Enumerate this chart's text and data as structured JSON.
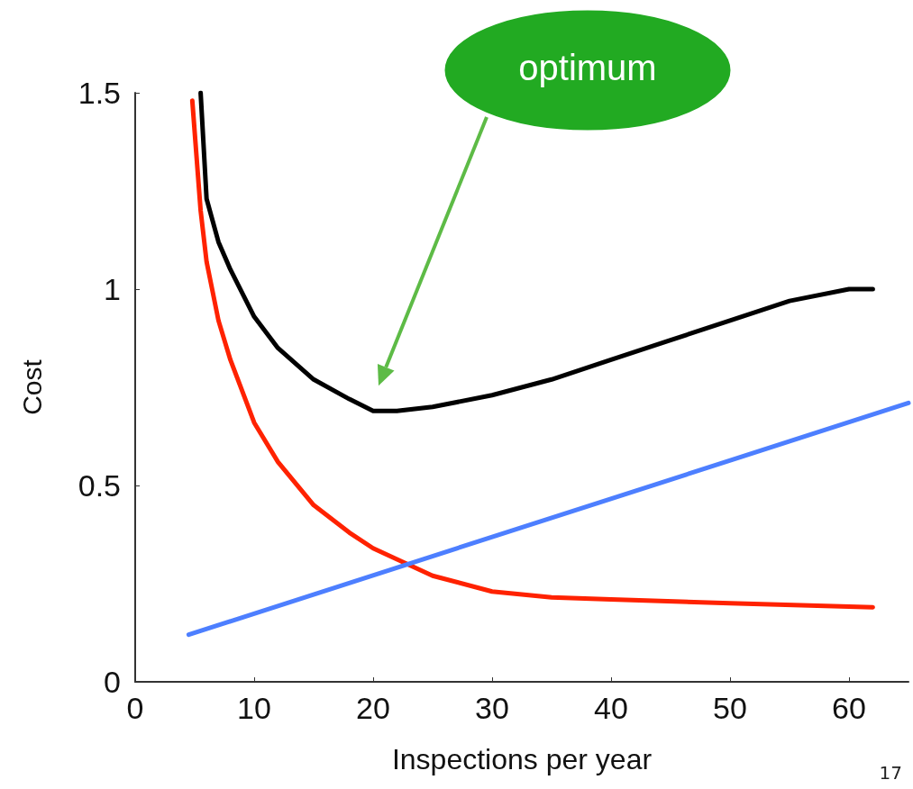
{
  "chart_data": {
    "type": "line",
    "xlabel": "Inspections per year",
    "ylabel": "Cost",
    "xlim": [
      0,
      65
    ],
    "xticks": [
      0,
      10,
      20,
      30,
      40,
      50,
      60
    ],
    "ylim": [
      0,
      1.5
    ],
    "yticks": [
      0,
      0.5,
      1,
      1.5
    ],
    "grid": false,
    "marker": "none",
    "line_style": "solid",
    "series": [
      {
        "color": "#000000",
        "x": [
          5.5,
          6,
          7,
          8,
          10,
          12,
          15,
          18,
          20,
          22,
          25,
          30,
          35,
          40,
          45,
          50,
          55,
          60,
          62
        ],
        "values": [
          1.5,
          1.23,
          1.12,
          1.05,
          0.93,
          0.85,
          0.77,
          0.72,
          0.69,
          0.69,
          0.7,
          0.73,
          0.77,
          0.82,
          0.87,
          0.92,
          0.97,
          1.0,
          1.0
        ]
      },
      {
        "color": "#ff2200",
        "x": [
          4.8,
          5.5,
          6,
          7,
          8,
          10,
          12,
          15,
          18,
          20,
          25,
          30,
          35,
          40,
          50,
          62
        ],
        "values": [
          1.48,
          1.2,
          1.07,
          0.92,
          0.82,
          0.66,
          0.56,
          0.45,
          0.38,
          0.34,
          0.27,
          0.23,
          0.215,
          0.21,
          0.2,
          0.19
        ]
      },
      {
        "color": "#4d7fff",
        "x": [
          4.5,
          65
        ],
        "values": [
          0.12,
          0.71
        ]
      }
    ],
    "annotations": [
      "optimum",
      "17"
    ]
  }
}
